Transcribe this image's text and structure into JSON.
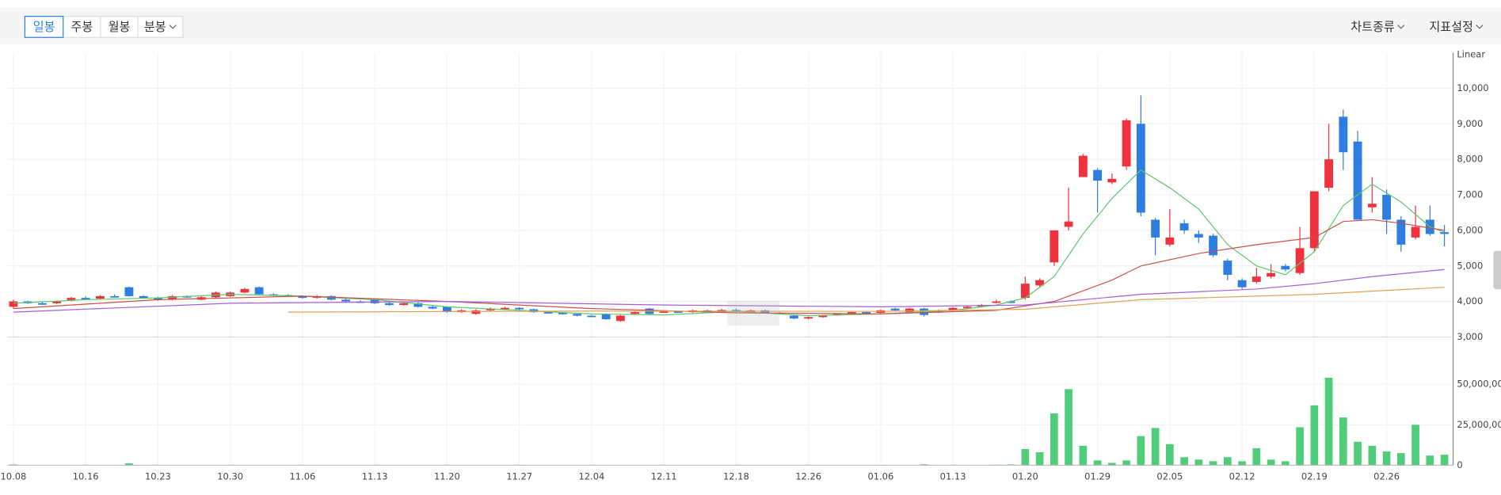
{
  "toolbar": {
    "periods": [
      "일봉",
      "주봉",
      "월봉",
      "분봉"
    ],
    "menus": [
      "차트종류",
      "지표설정"
    ]
  },
  "chart_data": {
    "type": "candlestick",
    "scale_label": "Linear",
    "up_color": "#f0313e",
    "down_color": "#2e7de1",
    "volume_color": "#50cd79",
    "grid": true,
    "categories": [
      "10.08",
      null,
      null,
      null,
      null,
      "10.16",
      null,
      null,
      null,
      null,
      "10.23",
      null,
      null,
      null,
      null,
      "10.30",
      null,
      null,
      null,
      null,
      "11.06",
      null,
      null,
      null,
      null,
      "11.13",
      null,
      null,
      null,
      null,
      "11.20",
      null,
      null,
      null,
      null,
      "11.27",
      null,
      null,
      null,
      null,
      "12.04",
      null,
      null,
      null,
      null,
      "12.11",
      null,
      null,
      null,
      null,
      "12.18",
      null,
      null,
      null,
      null,
      "12.26",
      null,
      null,
      null,
      null,
      "01.06",
      null,
      null,
      null,
      null,
      "01.13",
      null,
      null,
      null,
      null,
      "01.20",
      null,
      null,
      null,
      null,
      "01.29",
      null,
      null,
      null,
      null,
      "02.05",
      null,
      null,
      null,
      null,
      "02.12",
      null,
      null,
      null,
      null,
      "02.19",
      null,
      null,
      null,
      null,
      "02.26",
      null,
      null,
      null,
      null
    ],
    "ohlc": [
      [
        3850,
        4050,
        3800,
        4000
      ],
      [
        4000,
        4020,
        3930,
        3950
      ],
      [
        3950,
        3980,
        3900,
        3930
      ],
      [
        3950,
        4030,
        3930,
        4000
      ],
      [
        4020,
        4130,
        4000,
        4100
      ],
      [
        4100,
        4140,
        4060,
        4080
      ],
      [
        4080,
        4180,
        4060,
        4150
      ],
      [
        4150,
        4200,
        4110,
        4130
      ],
      [
        4400,
        4420,
        4130,
        4150
      ],
      [
        4150,
        4180,
        4080,
        4100
      ],
      [
        4100,
        4130,
        4020,
        4050
      ],
      [
        4050,
        4180,
        4030,
        4150
      ],
      [
        4150,
        4170,
        4100,
        4120
      ],
      [
        4050,
        4150,
        4030,
        4120
      ],
      [
        4120,
        4280,
        4100,
        4250
      ],
      [
        4150,
        4280,
        4130,
        4250
      ],
      [
        4250,
        4380,
        4230,
        4350
      ],
      [
        4400,
        4420,
        4180,
        4200
      ],
      [
        4200,
        4230,
        4160,
        4180
      ],
      [
        4180,
        4200,
        4130,
        4150
      ],
      [
        4150,
        4170,
        4080,
        4100
      ],
      [
        4100,
        4180,
        4080,
        4150
      ],
      [
        4150,
        4170,
        4030,
        4050
      ],
      [
        4050,
        4080,
        3980,
        4000
      ],
      [
        4000,
        4030,
        3960,
        3980
      ],
      [
        4050,
        4080,
        3930,
        3950
      ],
      [
        3950,
        3980,
        3880,
        3900
      ],
      [
        3900,
        3980,
        3880,
        3950
      ],
      [
        3950,
        3970,
        3830,
        3850
      ],
      [
        3850,
        3880,
        3780,
        3800
      ],
      [
        3850,
        3870,
        3680,
        3700
      ],
      [
        3700,
        3780,
        3680,
        3750
      ],
      [
        3650,
        3780,
        3630,
        3750
      ],
      [
        3750,
        3830,
        3730,
        3800
      ],
      [
        3800,
        3850,
        3780,
        3820
      ],
      [
        3820,
        3840,
        3760,
        3780
      ],
      [
        3780,
        3800,
        3680,
        3700
      ],
      [
        3700,
        3720,
        3660,
        3680
      ],
      [
        3680,
        3700,
        3630,
        3650
      ],
      [
        3650,
        3670,
        3580,
        3600
      ],
      [
        3600,
        3620,
        3560,
        3580
      ],
      [
        3650,
        3670,
        3480,
        3500
      ],
      [
        3450,
        3620,
        3430,
        3600
      ],
      [
        3650,
        3720,
        3630,
        3700
      ],
      [
        3800,
        3820,
        3630,
        3650
      ],
      [
        3700,
        3750,
        3680,
        3720
      ],
      [
        3720,
        3740,
        3680,
        3700
      ],
      [
        3700,
        3770,
        3680,
        3750
      ],
      [
        3750,
        3770,
        3680,
        3700
      ],
      [
        3720,
        3790,
        3700,
        3760
      ],
      [
        3760,
        3800,
        3680,
        3700
      ],
      [
        3700,
        3770,
        3680,
        3750
      ],
      [
        3750,
        3770,
        3660,
        3680
      ],
      [
        3680,
        3700,
        3630,
        3650
      ],
      [
        3600,
        3620,
        3500,
        3520
      ],
      [
        3520,
        3580,
        3500,
        3560
      ],
      [
        3560,
        3620,
        3540,
        3600
      ],
      [
        3620,
        3670,
        3600,
        3650
      ],
      [
        3650,
        3720,
        3630,
        3700
      ],
      [
        3700,
        3720,
        3660,
        3680
      ],
      [
        3680,
        3770,
        3660,
        3750
      ],
      [
        3800,
        3820,
        3730,
        3750
      ],
      [
        3700,
        3820,
        3680,
        3800
      ],
      [
        3800,
        3820,
        3580,
        3620
      ],
      [
        3700,
        3770,
        3680,
        3750
      ],
      [
        3750,
        3840,
        3730,
        3820
      ],
      [
        3820,
        3870,
        3800,
        3850
      ],
      [
        3850,
        3930,
        3830,
        3900
      ],
      [
        3980,
        4050,
        3950,
        4000
      ],
      [
        4000,
        4030,
        3950,
        3980
      ],
      [
        4100,
        4700,
        4050,
        4500
      ],
      [
        4450,
        4650,
        4400,
        4600
      ],
      [
        5100,
        6000,
        5000,
        6000
      ],
      [
        6100,
        7200,
        6000,
        6250
      ],
      [
        7500,
        8150,
        7500,
        8100
      ],
      [
        7700,
        7750,
        6500,
        7400
      ],
      [
        7350,
        7600,
        7300,
        7450
      ],
      [
        7800,
        9150,
        7700,
        9100
      ],
      [
        9000,
        9800,
        6400,
        6500
      ],
      [
        6300,
        6350,
        5300,
        5800
      ],
      [
        5600,
        6600,
        5550,
        5800
      ],
      [
        6200,
        6300,
        5900,
        6000
      ],
      [
        5900,
        6000,
        5650,
        5800
      ],
      [
        5850,
        5900,
        5250,
        5300
      ],
      [
        5150,
        5200,
        4600,
        4750
      ],
      [
        4600,
        4650,
        4350,
        4400
      ],
      [
        4550,
        4950,
        4500,
        4700
      ],
      [
        4700,
        5050,
        4650,
        4800
      ],
      [
        5000,
        5050,
        4850,
        4900
      ],
      [
        4800,
        6100,
        4750,
        5500
      ],
      [
        5500,
        7100,
        5400,
        7100
      ],
      [
        7200,
        9000,
        7100,
        8000
      ],
      [
        9200,
        9400,
        7700,
        8200
      ],
      [
        8500,
        8800,
        6300,
        6300
      ],
      [
        6650,
        7500,
        6500,
        6750
      ],
      [
        7000,
        7150,
        5900,
        6300
      ],
      [
        6300,
        6400,
        5400,
        5600
      ],
      [
        5800,
        6700,
        5750,
        6100
      ],
      [
        6300,
        6700,
        5850,
        5900
      ],
      [
        5950,
        6150,
        5550,
        5900
      ]
    ],
    "volume": [
      500000,
      200000,
      200000,
      200000,
      200000,
      200000,
      200000,
      200000,
      1200000,
      200000,
      200000,
      200000,
      200000,
      200000,
      200000,
      200000,
      200000,
      200000,
      200000,
      200000,
      200000,
      200000,
      200000,
      200000,
      200000,
      200000,
      200000,
      200000,
      200000,
      200000,
      200000,
      200000,
      200000,
      200000,
      200000,
      200000,
      200000,
      200000,
      200000,
      200000,
      200000,
      200000,
      200000,
      200000,
      200000,
      200000,
      200000,
      200000,
      200000,
      200000,
      200000,
      200000,
      200000,
      200000,
      200000,
      200000,
      200000,
      200000,
      200000,
      200000,
      200000,
      200000,
      200000,
      600000,
      200000,
      200000,
      200000,
      200000,
      300000,
      500000,
      10000000,
      8000000,
      32000000,
      47000000,
      12000000,
      3000000,
      1500000,
      3000000,
      18000000,
      23000000,
      13000000,
      5000000,
      3500000,
      2500000,
      5000000,
      2500000,
      10500000,
      3500000,
      2500000,
      23500000,
      37000000,
      54000000,
      29500000,
      14500000,
      12000000,
      8500000,
      7500000,
      25000000,
      6000000,
      6500000
    ],
    "ma": [
      {
        "color": "#5cc96a",
        "x": [
          0,
          5,
          10,
          15,
          20,
          25,
          30,
          35,
          40,
          45,
          50,
          55,
          60,
          65,
          68,
          70,
          72,
          74,
          76,
          78,
          80,
          82,
          84,
          86,
          88,
          90,
          92,
          94,
          96,
          98,
          99
        ],
        "values": [
          3950,
          4050,
          4100,
          4200,
          4150,
          4050,
          3850,
          3750,
          3650,
          3620,
          3720,
          3600,
          3650,
          3750,
          3900,
          4100,
          4700,
          5900,
          6900,
          7700,
          7200,
          6600,
          5600,
          5000,
          4750,
          5400,
          6700,
          7300,
          6800,
          6100,
          5950
        ]
      },
      {
        "color": "#c8504a",
        "x": [
          0,
          10,
          20,
          30,
          40,
          50,
          60,
          68,
          72,
          76,
          78,
          82,
          86,
          90,
          92,
          94,
          96,
          99
        ],
        "values": [
          3800,
          4050,
          4150,
          4000,
          3800,
          3680,
          3650,
          3750,
          4000,
          4600,
          5000,
          5350,
          5600,
          5800,
          6250,
          6300,
          6200,
          6000
        ]
      },
      {
        "color": "#a55fd6",
        "x": [
          0,
          15,
          30,
          45,
          60,
          70,
          78,
          86,
          90,
          94,
          99
        ],
        "values": [
          3700,
          3950,
          4000,
          3900,
          3850,
          3900,
          4200,
          4350,
          4500,
          4700,
          4900
        ]
      },
      {
        "color": "#e0a05a",
        "x": [
          19,
          40,
          60,
          70,
          78,
          90,
          99
        ],
        "values": [
          3700,
          3730,
          3720,
          3780,
          4050,
          4200,
          4400
        ]
      }
    ],
    "ylim": [
      3000,
      11000
    ],
    "yticks": [
      {
        "value": 3000,
        "label": "3,000"
      },
      {
        "value": 4000,
        "label": "4,000"
      },
      {
        "value": 5000,
        "label": "5,000"
      },
      {
        "value": 6000,
        "label": "6,000"
      },
      {
        "value": 7000,
        "label": "7,000"
      },
      {
        "value": 8000,
        "label": "8,000"
      },
      {
        "value": 9000,
        "label": "9,000"
      },
      {
        "value": 10000,
        "label": "10,000"
      }
    ],
    "y2lim": [
      0,
      78000000
    ],
    "y2ticks": [
      0,
      {
        "value": 25000000,
        "label": "25,000,000"
      },
      {
        "value": 50000000,
        "label": "50,000,000"
      }
    ]
  }
}
